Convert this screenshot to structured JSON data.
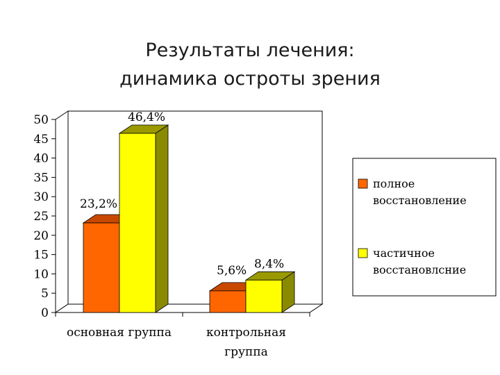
{
  "title": {
    "line1": "Результаты лечения:",
    "line2": "динамика остроты зрения"
  },
  "colors": {
    "series_full": "#ff6600",
    "series_full_top": "#c84800",
    "series_full_side": "#a33a00",
    "series_partial": "#ffff00",
    "series_partial_top": "#9a9a00",
    "series_partial_side": "#8a8a00",
    "wall": "#ffffff",
    "axis": "#000000"
  },
  "chart_data": {
    "type": "bar",
    "style": "3d-clustered-column",
    "categories": [
      {
        "line1": "основная группа",
        "line2": ""
      },
      {
        "line1": "контрольная",
        "line2": "группа"
      }
    ],
    "series": [
      {
        "name": "полное восстановление",
        "name_lines": [
          "полное",
          "восстановление"
        ],
        "values": [
          23.2,
          5.6
        ],
        "labels": [
          "23,2%",
          "5,6%"
        ]
      },
      {
        "name": "частичное восстановлсние",
        "name_lines": [
          "частичное",
          "восстановлсние"
        ],
        "values": [
          46.4,
          8.4
        ],
        "labels": [
          "46,4%",
          "8,4%"
        ]
      }
    ],
    "ylim": [
      0,
      50
    ],
    "yticks": [
      "0",
      "5",
      "10",
      "15",
      "20",
      "25",
      "30",
      "35",
      "40",
      "45",
      "50"
    ],
    "grid": false,
    "legend_position": "right"
  }
}
